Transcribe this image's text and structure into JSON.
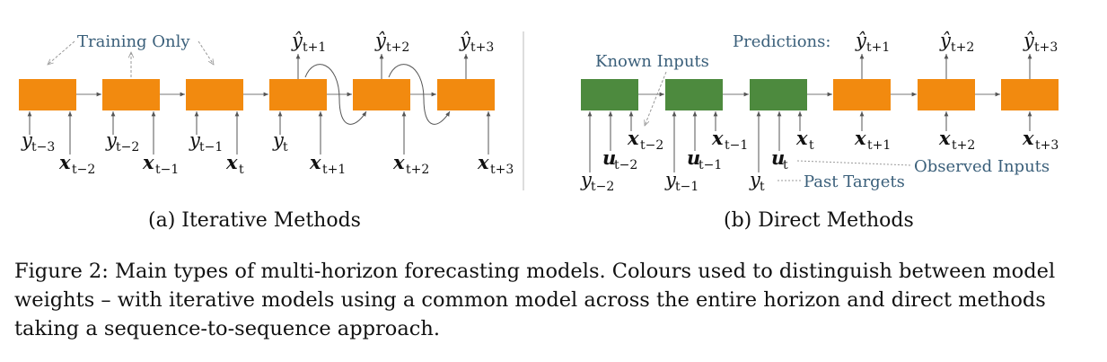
{
  "figure": {
    "panel_a": {
      "caption": "(a) Iterative Methods",
      "annotation": "Training Only",
      "outputs": [
        "t+1",
        "t+2",
        "t+3"
      ],
      "inputs_y": [
        "t−3",
        "t−2",
        "t−1",
        "t"
      ],
      "inputs_x": [
        "t−2",
        "t−1",
        "t",
        "t+1",
        "t+2",
        "t+3"
      ]
    },
    "panel_b": {
      "caption": "(b) Direct Methods",
      "predictions_label": "Predictions:",
      "known_inputs_label": "Known Inputs",
      "observed_inputs_label": "Observed Inputs",
      "past_targets_label": "Past Targets",
      "outputs": [
        "t+1",
        "t+2",
        "t+3"
      ],
      "encoder_x": [
        "t−2",
        "t−1",
        "t"
      ],
      "encoder_u": [
        "t−2",
        "t−1",
        "t"
      ],
      "encoder_y": [
        "t−2",
        "t−1",
        "t"
      ],
      "decoder_x": [
        "t+1",
        "t+2",
        "t+3"
      ]
    },
    "colors": {
      "decoder_orange": "#f28a0f",
      "encoder_green": "#4d8a3e",
      "annotation_blue": "#3a5f7a"
    }
  },
  "caption": "Figure 2: Main types of multi-horizon forecasting models. Colours used to distinguish between model weights – with iterative models using a common model across the entire horizon and direct methods taking a sequence-to-sequence approach."
}
